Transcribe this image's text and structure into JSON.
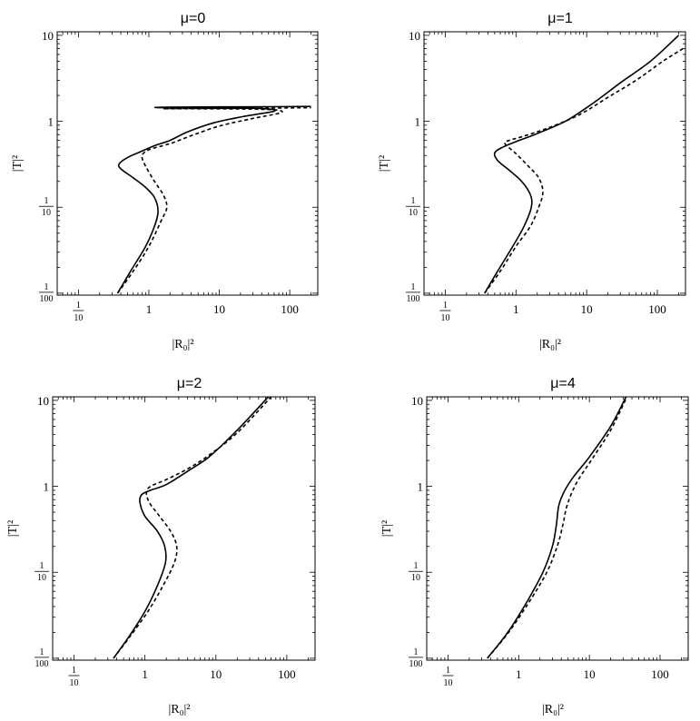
{
  "chart_data": [
    {
      "type": "line",
      "title": "μ=0",
      "xlabel": "|R₀|²",
      "ylabel": "|T|²",
      "x_scale": "log",
      "y_scale": "log",
      "xlim": [
        0.05,
        250
      ],
      "ylim": [
        0.0095,
        11
      ],
      "x_ticks": [
        {
          "value": 0.1,
          "num": "1",
          "den": "10"
        },
        {
          "value": 1,
          "label": "1"
        },
        {
          "value": 10,
          "label": "10"
        },
        {
          "value": 100,
          "label": "100"
        }
      ],
      "y_ticks": [
        {
          "value": 0.01,
          "num": "1",
          "den": "100"
        },
        {
          "value": 0.1,
          "num": "1",
          "den": "10"
        },
        {
          "value": 1,
          "label": "1"
        },
        {
          "value": 10,
          "label": "10"
        }
      ],
      "series": [
        {
          "style": "solid",
          "points": [
            [
              0.36,
              0.01
            ],
            [
              0.55,
              0.018
            ],
            [
              0.9,
              0.035
            ],
            [
              1.2,
              0.06
            ],
            [
              1.35,
              0.09
            ],
            [
              1.2,
              0.13
            ],
            [
              0.9,
              0.17
            ],
            [
              0.6,
              0.22
            ],
            [
              0.4,
              0.28
            ],
            [
              0.38,
              0.32
            ],
            [
              0.5,
              0.38
            ],
            [
              0.8,
              0.45
            ],
            [
              1.2,
              0.52
            ],
            [
              2,
              0.6
            ],
            [
              3.5,
              0.75
            ],
            [
              8,
              0.95
            ],
            [
              20,
              1.12
            ],
            [
              50,
              1.27
            ],
            [
              62,
              1.33
            ],
            [
              55,
              1.38
            ],
            [
              30,
              1.42
            ],
            [
              10,
              1.43
            ],
            [
              1.5,
              1.44
            ],
            [
              1.6,
              1.46
            ],
            [
              10,
              1.47
            ],
            [
              60,
              1.48
            ],
            [
              200,
              1.49
            ]
          ]
        },
        {
          "style": "dashed",
          "points": [
            [
              0.36,
              0.01
            ],
            [
              0.6,
              0.018
            ],
            [
              1,
              0.035
            ],
            [
              1.5,
              0.07
            ],
            [
              1.8,
              0.1
            ],
            [
              1.6,
              0.14
            ],
            [
              1.2,
              0.2
            ],
            [
              0.9,
              0.3
            ],
            [
              0.8,
              0.38
            ],
            [
              0.85,
              0.43
            ],
            [
              1.1,
              0.48
            ],
            [
              2,
              0.55
            ],
            [
              4,
              0.68
            ],
            [
              10,
              0.88
            ],
            [
              30,
              1.08
            ],
            [
              65,
              1.22
            ],
            [
              78,
              1.3
            ],
            [
              60,
              1.36
            ],
            [
              20,
              1.39
            ],
            [
              3,
              1.4
            ],
            [
              1.6,
              1.4
            ],
            [
              3,
              1.41
            ],
            [
              30,
              1.42
            ],
            [
              200,
              1.44
            ]
          ]
        }
      ]
    },
    {
      "type": "line",
      "title": "μ=1",
      "xlabel": "|R₀|²",
      "ylabel": "|T|²",
      "x_scale": "log",
      "y_scale": "log",
      "xlim": [
        0.05,
        250
      ],
      "ylim": [
        0.0095,
        11
      ],
      "x_ticks": [
        {
          "value": 0.1,
          "num": "1",
          "den": "10"
        },
        {
          "value": 1,
          "label": "1"
        },
        {
          "value": 10,
          "label": "10"
        },
        {
          "value": 100,
          "label": "100"
        }
      ],
      "y_ticks": [
        {
          "value": 0.01,
          "num": "1",
          "den": "100"
        },
        {
          "value": 0.1,
          "num": "1",
          "den": "10"
        },
        {
          "value": 1,
          "label": "1"
        },
        {
          "value": 10,
          "label": "10"
        }
      ],
      "series": [
        {
          "style": "solid",
          "points": [
            [
              0.36,
              0.01
            ],
            [
              0.55,
              0.018
            ],
            [
              0.9,
              0.035
            ],
            [
              1.3,
              0.06
            ],
            [
              1.65,
              0.1
            ],
            [
              1.6,
              0.14
            ],
            [
              1.2,
              0.2
            ],
            [
              0.8,
              0.27
            ],
            [
              0.55,
              0.35
            ],
            [
              0.5,
              0.43
            ],
            [
              0.65,
              0.5
            ],
            [
              1,
              0.58
            ],
            [
              2,
              0.72
            ],
            [
              5,
              1.0
            ],
            [
              12,
              1.6
            ],
            [
              30,
              2.8
            ],
            [
              80,
              5
            ],
            [
              200,
              10
            ]
          ]
        },
        {
          "style": "dashed",
          "points": [
            [
              0.36,
              0.01
            ],
            [
              0.6,
              0.018
            ],
            [
              1,
              0.035
            ],
            [
              1.6,
              0.06
            ],
            [
              2.1,
              0.1
            ],
            [
              2.4,
              0.15
            ],
            [
              2.1,
              0.22
            ],
            [
              1.5,
              0.3
            ],
            [
              1,
              0.42
            ],
            [
              0.7,
              0.55
            ],
            [
              0.8,
              0.6
            ],
            [
              1.2,
              0.66
            ],
            [
              3,
              0.85
            ],
            [
              8,
              1.2
            ],
            [
              20,
              1.9
            ],
            [
              50,
              3
            ],
            [
              120,
              5
            ],
            [
              230,
              7
            ]
          ]
        }
      ]
    },
    {
      "type": "line",
      "title": "μ=2",
      "xlabel": "|R₀|²",
      "ylabel": "|T|²",
      "x_scale": "log",
      "y_scale": "log",
      "xlim": [
        0.05,
        250
      ],
      "ylim": [
        0.0095,
        11
      ],
      "x_ticks": [
        {
          "value": 0.1,
          "num": "1",
          "den": "10"
        },
        {
          "value": 1,
          "label": "1"
        },
        {
          "value": 10,
          "label": "10"
        },
        {
          "value": 100,
          "label": "100"
        }
      ],
      "y_ticks": [
        {
          "value": 0.01,
          "num": "1",
          "den": "100"
        },
        {
          "value": 0.1,
          "num": "1",
          "den": "10"
        },
        {
          "value": 1,
          "label": "1"
        },
        {
          "value": 10,
          "label": "10"
        }
      ],
      "series": [
        {
          "style": "solid",
          "points": [
            [
              0.36,
              0.01
            ],
            [
              0.6,
              0.018
            ],
            [
              1,
              0.035
            ],
            [
              1.5,
              0.07
            ],
            [
              1.95,
              0.13
            ],
            [
              1.9,
              0.2
            ],
            [
              1.5,
              0.3
            ],
            [
              1,
              0.45
            ],
            [
              0.85,
              0.65
            ],
            [
              0.9,
              0.8
            ],
            [
              1.2,
              0.9
            ],
            [
              2,
              1.05
            ],
            [
              4,
              1.5
            ],
            [
              8,
              2.2
            ],
            [
              20,
              4.5
            ],
            [
              55,
              11
            ]
          ]
        },
        {
          "style": "dashed",
          "points": [
            [
              0.36,
              0.01
            ],
            [
              0.62,
              0.018
            ],
            [
              1.1,
              0.035
            ],
            [
              1.8,
              0.07
            ],
            [
              2.6,
              0.13
            ],
            [
              2.8,
              0.2
            ],
            [
              2.3,
              0.3
            ],
            [
              1.6,
              0.45
            ],
            [
              1.15,
              0.65
            ],
            [
              1.05,
              0.85
            ],
            [
              1.2,
              1.0
            ],
            [
              2,
              1.2
            ],
            [
              4,
              1.6
            ],
            [
              8,
              2.3
            ],
            [
              20,
              4.2
            ],
            [
              60,
              11
            ]
          ]
        }
      ]
    },
    {
      "type": "line",
      "title": "μ=4",
      "xlabel": "|R₀|²",
      "ylabel": "|T|²",
      "x_scale": "log",
      "y_scale": "log",
      "xlim": [
        0.05,
        250
      ],
      "ylim": [
        0.0095,
        11
      ],
      "x_ticks": [
        {
          "value": 0.1,
          "num": "1",
          "den": "10"
        },
        {
          "value": 1,
          "label": "1"
        },
        {
          "value": 10,
          "label": "10"
        },
        {
          "value": 100,
          "label": "100"
        }
      ],
      "y_ticks": [
        {
          "value": 0.01,
          "num": "1",
          "den": "100"
        },
        {
          "value": 0.1,
          "num": "1",
          "den": "10"
        },
        {
          "value": 1,
          "label": "1"
        },
        {
          "value": 10,
          "label": "10"
        }
      ],
      "series": [
        {
          "style": "solid",
          "points": [
            [
              0.36,
              0.01
            ],
            [
              0.7,
              0.02
            ],
            [
              1.3,
              0.045
            ],
            [
              2.2,
              0.1
            ],
            [
              3,
              0.2
            ],
            [
              3.4,
              0.35
            ],
            [
              3.7,
              0.6
            ],
            [
              4.5,
              0.9
            ],
            [
              6,
              1.3
            ],
            [
              10,
              2.2
            ],
            [
              20,
              5
            ],
            [
              33,
              11
            ]
          ]
        },
        {
          "style": "dashed",
          "points": [
            [
              0.36,
              0.01
            ],
            [
              0.72,
              0.02
            ],
            [
              1.4,
              0.045
            ],
            [
              2.5,
              0.1
            ],
            [
              3.5,
              0.2
            ],
            [
              4.2,
              0.35
            ],
            [
              4.7,
              0.55
            ],
            [
              5.5,
              0.8
            ],
            [
              7,
              1.2
            ],
            [
              11,
              2.1
            ],
            [
              20,
              4.5
            ],
            [
              34,
              11
            ]
          ]
        }
      ]
    }
  ]
}
